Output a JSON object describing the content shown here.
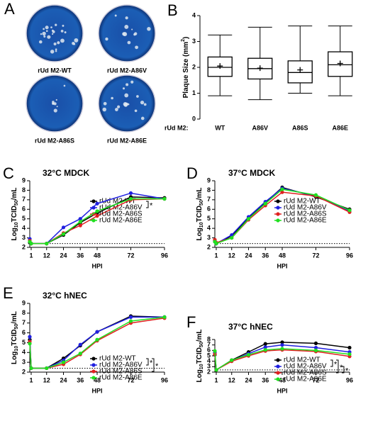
{
  "panel_a": {
    "letter": "A",
    "plates": [
      "rUd M2-WT",
      "rUd M2-A86V",
      "rUd M2-A86S",
      "rUd M2-A86E"
    ]
  },
  "chart_data": [
    {
      "type": "box",
      "panel": "B",
      "ylabel_parts": [
        "Plaque Size (mm",
        "2",
        ")"
      ],
      "xlabel": "rUd M2:",
      "categories": [
        "WT",
        "A86V",
        "A86S",
        "A86E"
      ],
      "boxes": [
        {
          "min": 0.9,
          "q1": 1.65,
          "median": 2.0,
          "q3": 2.4,
          "max": 3.25,
          "mean": 2.05
        },
        {
          "min": 0.75,
          "q1": 1.55,
          "median": 1.95,
          "q3": 2.35,
          "max": 3.55,
          "mean": 1.97
        },
        {
          "min": 1.0,
          "q1": 1.4,
          "median": 1.8,
          "q3": 2.25,
          "max": 3.6,
          "mean": 1.9
        },
        {
          "min": 0.9,
          "q1": 1.65,
          "median": 2.1,
          "q3": 2.6,
          "max": 3.6,
          "mean": 2.15
        }
      ],
      "ylim": [
        0,
        4
      ],
      "yticks": [
        0,
        1,
        2,
        3,
        4
      ]
    },
    {
      "type": "line",
      "panel": "C",
      "title": "32°C MDCK",
      "ylabel_parts": [
        "Log",
        "10",
        "TCID",
        "50",
        "/mL"
      ],
      "xlabel": "HPI",
      "x": [
        0,
        1,
        12,
        24,
        36,
        48,
        72,
        96
      ],
      "xlim": [
        0,
        96
      ],
      "xticks": [
        1,
        12,
        24,
        36,
        48,
        72,
        96
      ],
      "ylim": [
        2,
        9
      ],
      "yticks": [
        2,
        3,
        4,
        5,
        6,
        7,
        8,
        9
      ],
      "lod": 2.4,
      "annotations": [
        "*"
      ],
      "series": [
        {
          "name": "rUd M2-WT",
          "color": "#000000",
          "values": [
            2.5,
            2.4,
            2.4,
            3.3,
            4.6,
            5.6,
            7.3,
            7.2
          ]
        },
        {
          "name": "rUd M2-A86V",
          "color": "#2020e0",
          "values": [
            2.9,
            2.4,
            2.4,
            4.1,
            5.0,
            6.6,
            7.7,
            7.1
          ]
        },
        {
          "name": "rUd M2-A86S",
          "color": "#e02020",
          "values": [
            2.7,
            2.4,
            2.4,
            3.5,
            4.3,
            5.3,
            7.0,
            7.1
          ]
        },
        {
          "name": "rUd M2-A86E",
          "color": "#20e020",
          "values": [
            2.6,
            2.4,
            2.4,
            3.4,
            4.7,
            5.8,
            7.1,
            7.1
          ]
        }
      ]
    },
    {
      "type": "line",
      "panel": "D",
      "title": "37°C MDCK",
      "ylabel_parts": [
        "Log",
        "10",
        "TCID",
        "50",
        "/mL"
      ],
      "xlabel": "HPI",
      "x": [
        0,
        1,
        12,
        24,
        36,
        48,
        72,
        96
      ],
      "xlim": [
        0,
        96
      ],
      "xticks": [
        1,
        12,
        24,
        36,
        48,
        72,
        96
      ],
      "ylim": [
        2,
        9
      ],
      "yticks": [
        2,
        3,
        4,
        5,
        6,
        7,
        8,
        9
      ],
      "lod": 2.4,
      "annotations": [],
      "series": [
        {
          "name": "rUd M2-WT",
          "color": "#000000",
          "values": [
            2.6,
            2.4,
            3.2,
            5.1,
            6.7,
            8.3,
            7.3,
            6.0
          ]
        },
        {
          "name": "rUd M2-A86V",
          "color": "#2020e0",
          "values": [
            2.7,
            2.4,
            3.3,
            5.2,
            6.8,
            8.2,
            7.4,
            5.8
          ]
        },
        {
          "name": "rUd M2-A86S",
          "color": "#e02020",
          "values": [
            2.8,
            2.5,
            3.0,
            4.9,
            6.4,
            7.8,
            7.4,
            5.7
          ]
        },
        {
          "name": "rUd M2-A86E",
          "color": "#20e020",
          "values": [
            2.6,
            2.4,
            3.0,
            5.0,
            6.6,
            8.1,
            7.5,
            5.9
          ]
        }
      ]
    },
    {
      "type": "line",
      "panel": "E",
      "title": "32°C hNEC",
      "ylabel_parts": [
        "Log",
        "10",
        "TCID",
        "50",
        "/mL"
      ],
      "xlabel": "HPI",
      "x": [
        0,
        1,
        12,
        24,
        36,
        48,
        72,
        96
      ],
      "xlim": [
        0,
        96
      ],
      "xticks": [
        1,
        12,
        24,
        36,
        48,
        72,
        96
      ],
      "ylim": [
        2,
        9
      ],
      "yticks": [
        2,
        3,
        4,
        5,
        6,
        7,
        8,
        9
      ],
      "lod": 2.4,
      "annotations": [
        "*",
        "*"
      ],
      "series": [
        {
          "name": "rUd M2-WT",
          "color": "#000000",
          "values": [
            5.3,
            2.4,
            2.4,
            3.4,
            4.7,
            6.1,
            7.7,
            7.6
          ]
        },
        {
          "name": "rUd M2-A86V",
          "color": "#2020e0",
          "values": [
            5.6,
            2.4,
            2.4,
            3.2,
            4.8,
            6.1,
            7.6,
            7.6
          ]
        },
        {
          "name": "rUd M2-A86S",
          "color": "#e02020",
          "values": [
            5.1,
            2.4,
            2.4,
            2.8,
            3.8,
            5.2,
            7.0,
            7.5
          ]
        },
        {
          "name": "rUd M2-A86E",
          "color": "#20e020",
          "values": [
            4.9,
            2.4,
            2.4,
            3.0,
            3.9,
            5.3,
            7.2,
            7.6
          ]
        }
      ]
    },
    {
      "type": "line",
      "panel": "F",
      "title": "37°C hNEC",
      "ylabel_parts": [
        "Log",
        "10",
        "TCID",
        "50",
        "/mL"
      ],
      "xlabel": "HPI",
      "x": [
        0,
        1,
        12,
        24,
        36,
        48,
        72,
        96
      ],
      "xlim": [
        0,
        96
      ],
      "xticks": [
        1,
        12,
        24,
        36,
        48,
        72,
        96
      ],
      "ylim": [
        2,
        8
      ],
      "yticks": [
        2,
        3,
        4,
        5,
        6,
        7,
        8
      ],
      "lod": 2.4,
      "annotations": [
        "*",
        "*",
        "*"
      ],
      "series": [
        {
          "name": "rUd M2-WT",
          "color": "#000000",
          "values": [
            5.2,
            2.4,
            4.2,
            5.7,
            7.2,
            7.5,
            7.3,
            6.5
          ]
        },
        {
          "name": "rUd M2-A86V",
          "color": "#2020e0",
          "values": [
            5.6,
            2.4,
            4.1,
            5.4,
            6.6,
            7.0,
            6.5,
            5.7
          ]
        },
        {
          "name": "rUd M2-A86S",
          "color": "#e02020",
          "values": [
            5.3,
            2.4,
            4.0,
            5.0,
            5.9,
            6.1,
            5.8,
            4.9
          ]
        },
        {
          "name": "rUd M2-A86E",
          "color": "#20e020",
          "values": [
            5.9,
            2.4,
            4.2,
            5.2,
            6.1,
            6.3,
            6.0,
            5.3
          ]
        }
      ]
    }
  ]
}
